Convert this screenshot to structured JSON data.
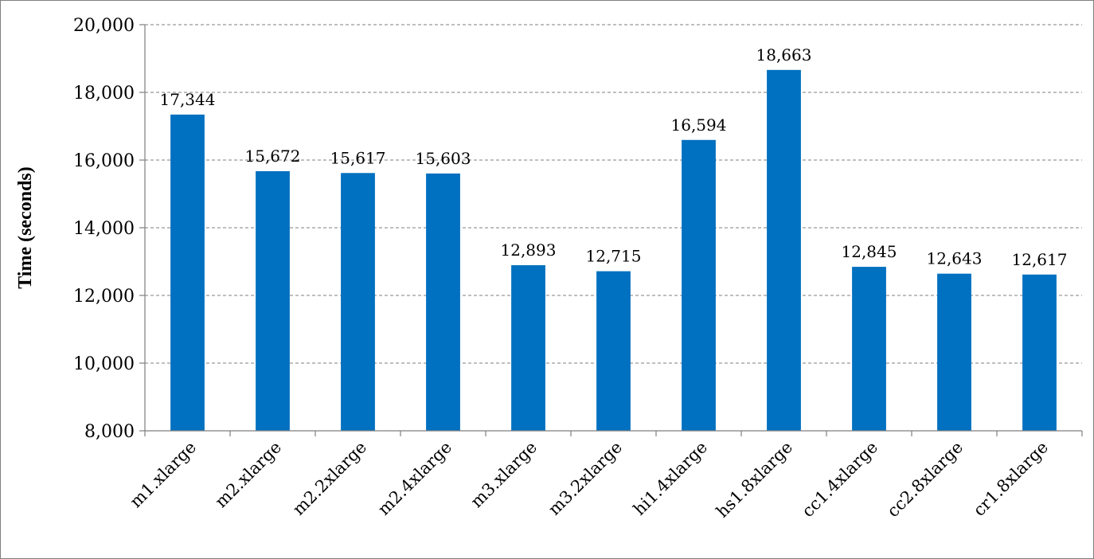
{
  "chart_data": {
    "type": "bar",
    "title": "",
    "xlabel": "",
    "ylabel": "Time (seconds)",
    "ylim": [
      8000,
      20000
    ],
    "yticks": [
      8000,
      10000,
      12000,
      14000,
      16000,
      18000,
      20000
    ],
    "ytick_labels": [
      "8,000",
      "10,000",
      "12,000",
      "14,000",
      "16,000",
      "18,000",
      "20,000"
    ],
    "grid": true,
    "legend": "none",
    "bar_color": "#0070C0",
    "categories": [
      "m1.xlarge",
      "m2.xlarge",
      "m2.2xlarge",
      "m2.4xlarge",
      "m3.xlarge",
      "m3.2xlarge",
      "hi1.4xlarge",
      "hs1.8xlarge",
      "cc1.4xlarge",
      "cc2.8xlarge",
      "cr1.8xlarge"
    ],
    "values": [
      17344,
      15672,
      15617,
      15603,
      12893,
      12715,
      16594,
      18663,
      12845,
      12643,
      12617
    ],
    "value_labels": [
      "17,344",
      "15,672",
      "15,617",
      "15,603",
      "12,893",
      "12,715",
      "16,594",
      "18,663",
      "12,845",
      "12,643",
      "12,617"
    ]
  }
}
